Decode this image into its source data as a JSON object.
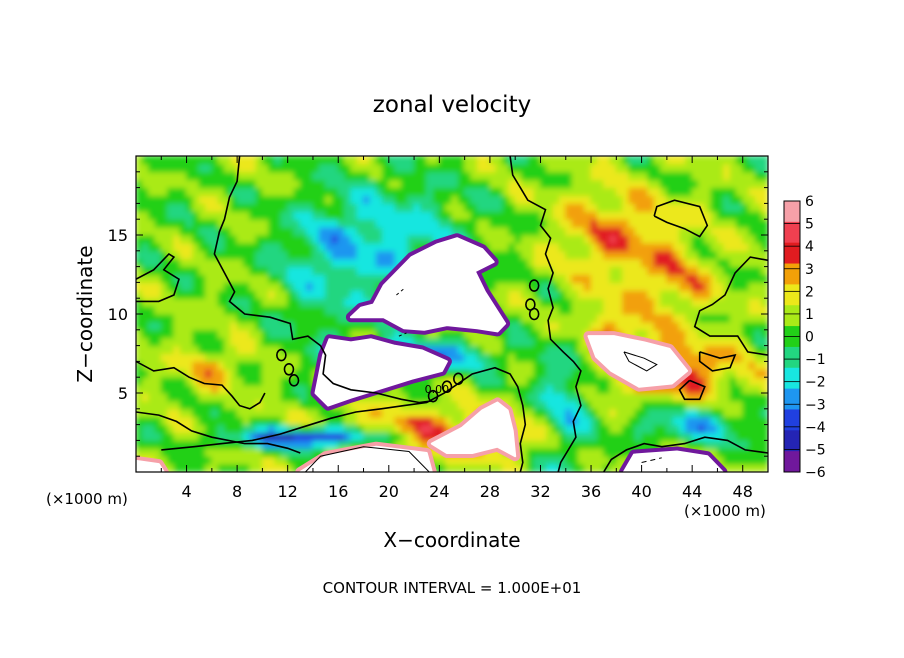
{
  "chart_data": {
    "type": "heatmap",
    "title": "zonal velocity",
    "xlabel": "X−coordinate",
    "ylabel": "Z−coordinate",
    "x_unit_left": "(×1000 m)",
    "x_unit_right": "(×1000 m)",
    "footer": "CONTOUR INTERVAL = 1.000E+01",
    "xlim": [
      0,
      50
    ],
    "ylim": [
      0,
      20
    ],
    "xticks": [
      4,
      8,
      12,
      16,
      20,
      24,
      28,
      32,
      36,
      40,
      44,
      48
    ],
    "yticks": [
      5,
      10,
      15
    ],
    "colorbar": {
      "levels": [
        6,
        5,
        4,
        3,
        2,
        1,
        0,
        -1,
        -2,
        -3,
        -4,
        -5,
        -6
      ],
      "labels": [
        "6",
        "5",
        "4",
        "3",
        "2",
        "1",
        "0",
        "−1",
        "−2",
        "−3",
        "−4",
        "−5",
        "−6"
      ],
      "colors": [
        "#f6a0a8",
        "#f04050",
        "#e11c20",
        "#f2a008",
        "#ece81a",
        "#aaea18",
        "#22d018",
        "#22d680",
        "#18e6e0",
        "#1e96f0",
        "#2040e0",
        "#2424b4",
        "#70189c"
      ]
    },
    "contour_labels": [
      {
        "x": 23.8,
        "z": 5.0,
        "text": "0.00"
      }
    ],
    "grid": false,
    "legend": "right"
  }
}
